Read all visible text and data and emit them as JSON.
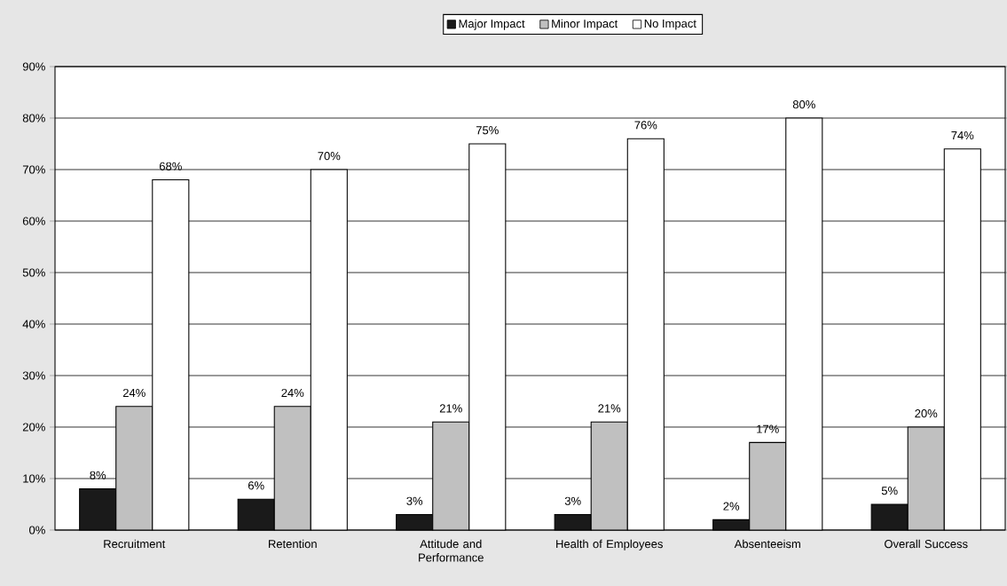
{
  "chart_data": {
    "type": "bar",
    "categories": [
      "Recruitment",
      "Retention",
      "Attitude and Performance",
      "Health of Employees",
      "Absenteeism",
      "Overall Success"
    ],
    "series": [
      {
        "name": "Major Impact",
        "color": "#1a1a1a",
        "values": [
          8,
          6,
          3,
          3,
          2,
          5
        ],
        "value_labels": [
          "8%",
          "6%",
          "3%",
          "3%",
          "2%",
          "5%"
        ]
      },
      {
        "name": "Minor Impact",
        "color": "#c0c0c0",
        "values": [
          24,
          24,
          21,
          21,
          17,
          20
        ],
        "value_labels": [
          "24%",
          "24%",
          "21%",
          "21%",
          "17%",
          "20%"
        ]
      },
      {
        "name": "No Impact",
        "color": "#ffffff",
        "values": [
          68,
          70,
          75,
          76,
          80,
          74
        ],
        "value_labels": [
          "68%",
          "70%",
          "75%",
          "76%",
          "80%",
          "74%"
        ]
      }
    ],
    "ylim": [
      0,
      90
    ],
    "yticks": [
      {
        "value": 0,
        "label": "0%"
      },
      {
        "value": 10,
        "label": "10%"
      },
      {
        "value": 20,
        "label": "20%"
      },
      {
        "value": 30,
        "label": "30%"
      },
      {
        "value": 40,
        "label": "40%"
      },
      {
        "value": 50,
        "label": "50%"
      },
      {
        "value": 60,
        "label": "60%"
      },
      {
        "value": 70,
        "label": "70%"
      },
      {
        "value": 80,
        "label": "80%"
      },
      {
        "value": 90,
        "label": "90%"
      }
    ],
    "grid": "y",
    "legend": "top"
  }
}
